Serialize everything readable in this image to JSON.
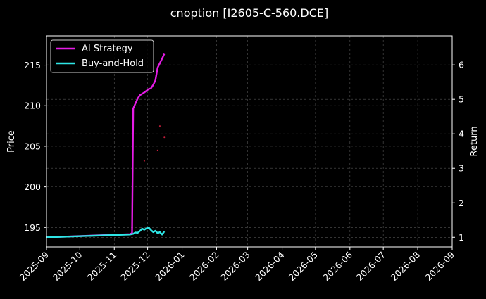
{
  "chart_data": {
    "type": "line",
    "title": "cnoption [I2605-C-560.DCE]",
    "ylabel_left": "Price",
    "ylabel_right": "Return",
    "x_ticks": [
      "2025-09",
      "2025-10",
      "2025-11",
      "2025-12",
      "2026-01",
      "2026-02",
      "2026-03",
      "2026-04",
      "2026-05",
      "2026-06",
      "2026-07",
      "2026-08",
      "2026-09"
    ],
    "xlim": [
      "2025-09-01",
      "2026-09-01"
    ],
    "left_yticks": [
      195,
      200,
      205,
      210,
      215
    ],
    "left_ylim": [
      192.6,
      218.6
    ],
    "right_yticks": [
      1,
      2,
      3,
      4,
      5,
      6
    ],
    "right_ylim": [
      0.72,
      6.84
    ],
    "grid": true,
    "legend_position": "top-left",
    "colors": {
      "background": "#000000",
      "ai_strategy": "#e61ce6",
      "buy_and_hold": "#2ee6e6",
      "grid": "#555555",
      "marker": "#c81e3c"
    },
    "series": [
      {
        "name": "AI Strategy",
        "axis": "right",
        "points": [
          [
            "2025-09-01",
            1.0
          ],
          [
            "2025-11-15",
            1.09
          ],
          [
            "2025-11-17",
            1.12
          ],
          [
            "2025-11-18",
            4.73
          ],
          [
            "2025-11-20",
            4.88
          ],
          [
            "2025-11-22",
            5.02
          ],
          [
            "2025-11-24",
            5.12
          ],
          [
            "2025-11-26",
            5.16
          ],
          [
            "2025-11-28",
            5.2
          ],
          [
            "2025-11-30",
            5.25
          ],
          [
            "2025-12-02",
            5.3
          ],
          [
            "2025-12-04",
            5.32
          ],
          [
            "2025-12-06",
            5.42
          ],
          [
            "2025-12-08",
            5.55
          ],
          [
            "2025-12-10",
            5.92
          ],
          [
            "2025-12-12",
            6.05
          ],
          [
            "2025-12-14",
            6.18
          ],
          [
            "2025-12-16",
            6.32
          ]
        ]
      },
      {
        "name": "Buy-and-Hold",
        "axis": "right",
        "points": [
          [
            "2025-09-01",
            1.0
          ],
          [
            "2025-11-15",
            1.08
          ],
          [
            "2025-11-18",
            1.1
          ],
          [
            "2025-11-20",
            1.14
          ],
          [
            "2025-11-22",
            1.13
          ],
          [
            "2025-11-24",
            1.18
          ],
          [
            "2025-11-26",
            1.25
          ],
          [
            "2025-11-28",
            1.22
          ],
          [
            "2025-11-30",
            1.26
          ],
          [
            "2025-12-02",
            1.28
          ],
          [
            "2025-12-04",
            1.21
          ],
          [
            "2025-12-06",
            1.15
          ],
          [
            "2025-12-08",
            1.19
          ],
          [
            "2025-12-10",
            1.12
          ],
          [
            "2025-12-12",
            1.15
          ],
          [
            "2025-12-14",
            1.08
          ],
          [
            "2025-12-16",
            1.17
          ]
        ]
      }
    ],
    "price_markers": [
      [
        "2025-11-28",
        203.2
      ],
      [
        "2025-12-10",
        204.5
      ],
      [
        "2025-12-12",
        207.5
      ],
      [
        "2025-12-16",
        206.1
      ]
    ]
  }
}
